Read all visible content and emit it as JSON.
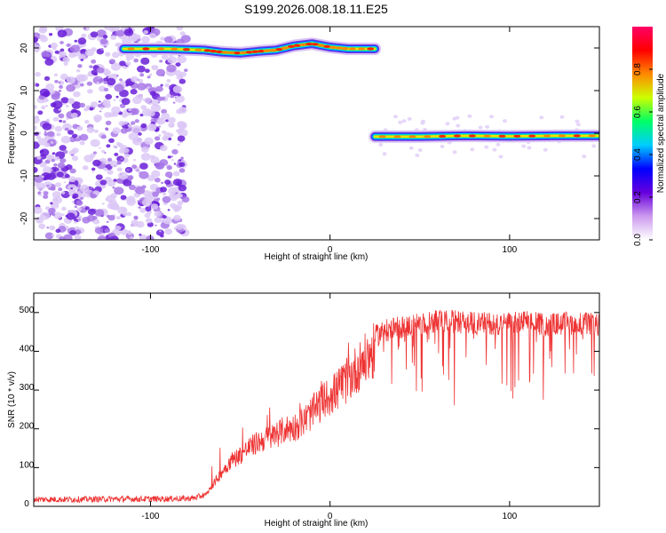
{
  "title": "S199.2026.008.18.11.E25",
  "chart_data": [
    {
      "type": "heatmap",
      "xlabel": "Height of straight line (km)",
      "ylabel": "Frequency (Hz)",
      "xlim": [
        -165,
        150
      ],
      "ylim": [
        -25,
        25
      ],
      "xticks": [
        -100,
        0,
        100
      ],
      "yticks": [
        -20,
        -10,
        0,
        10,
        20
      ],
      "grid": false,
      "colorbar": {
        "label": "Normalized spectral amplitude",
        "range": [
          0,
          1
        ],
        "ticks": [
          0.0,
          0.2,
          0.4,
          0.6,
          0.8
        ],
        "colormap": [
          "#ffffff",
          "#cc99ee",
          "#6600dd",
          "#0000ff",
          "#00ccff",
          "#00ff66",
          "#ccff00",
          "#ff8800",
          "#ff0000",
          "#ff0066"
        ]
      },
      "ridge": [
        {
          "x": -115,
          "freq": 19.8
        },
        {
          "x": -90,
          "freq": 19.8
        },
        {
          "x": -70,
          "freq": 19.5
        },
        {
          "x": -60,
          "freq": 19.0
        },
        {
          "x": -50,
          "freq": 18.8
        },
        {
          "x": -40,
          "freq": 19.2
        },
        {
          "x": -30,
          "freq": 19.5
        },
        {
          "x": -20,
          "freq": 20.5
        },
        {
          "x": -10,
          "freq": 21.0
        },
        {
          "x": 0,
          "freq": 20.2
        },
        {
          "x": 10,
          "freq": 19.8
        },
        {
          "x": 25,
          "freq": 19.8
        },
        {
          "x": 25,
          "freq": -0.8
        },
        {
          "x": 50,
          "freq": -0.8
        },
        {
          "x": 75,
          "freq": -0.6
        },
        {
          "x": 100,
          "freq": -0.7
        },
        {
          "x": 125,
          "freq": -0.6
        },
        {
          "x": 150,
          "freq": -0.6
        }
      ]
    },
    {
      "type": "line",
      "xlabel": "Height of straight line (km)",
      "ylabel": "SNR (10 * v/v)",
      "xlim": [
        -165,
        150
      ],
      "ylim": [
        0,
        550
      ],
      "xticks": [
        -100,
        0,
        100
      ],
      "yticks": [
        0,
        100,
        200,
        300,
        400,
        500
      ],
      "grid": false,
      "series": [
        {
          "color": "#ee3333",
          "x": [
            -165,
            -140,
            -120,
            -100,
            -80,
            -75,
            -70,
            -65,
            -60,
            -55,
            -50,
            -45,
            -40,
            -35,
            -30,
            -25,
            -20,
            -15,
            -10,
            -5,
            0,
            5,
            10,
            15,
            20,
            25,
            30,
            40,
            50,
            60,
            70,
            80,
            90,
            100,
            110,
            120,
            130,
            140,
            150
          ],
          "values": [
            18,
            18,
            19,
            19,
            20,
            22,
            30,
            60,
            95,
            125,
            140,
            160,
            175,
            185,
            195,
            210,
            215,
            230,
            255,
            280,
            300,
            320,
            345,
            375,
            400,
            425,
            440,
            450,
            460,
            465,
            465,
            460,
            460,
            460,
            465,
            455,
            460,
            460,
            455
          ]
        }
      ]
    }
  ]
}
